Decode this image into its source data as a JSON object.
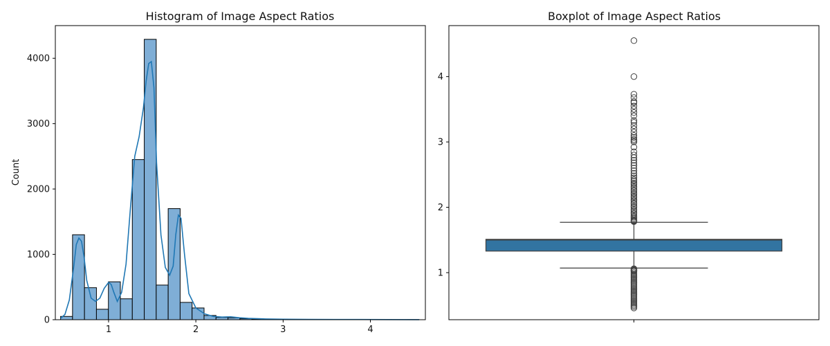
{
  "chart_data": [
    {
      "type": "bar",
      "title": "Histogram of Image Aspect Ratios",
      "xlabel": "",
      "ylabel": "Count",
      "xlim": [
        0.39,
        4.63
      ],
      "ylim": [
        0,
        4500
      ],
      "xticks": [
        1,
        2,
        3,
        4
      ],
      "yticks": [
        0,
        1000,
        2000,
        3000,
        4000
      ],
      "bar_color": "#7FAED6",
      "line_color": "#1F77B4",
      "bins": [
        {
          "x0": 0.45,
          "x1": 0.587,
          "count": 50
        },
        {
          "x0": 0.587,
          "x1": 0.724,
          "count": 1300
        },
        {
          "x0": 0.724,
          "x1": 0.861,
          "count": 490
        },
        {
          "x0": 0.861,
          "x1": 0.998,
          "count": 160
        },
        {
          "x0": 0.998,
          "x1": 1.135,
          "count": 580
        },
        {
          "x0": 1.135,
          "x1": 1.272,
          "count": 320
        },
        {
          "x0": 1.272,
          "x1": 1.409,
          "count": 2450
        },
        {
          "x0": 1.409,
          "x1": 1.546,
          "count": 4290
        },
        {
          "x0": 1.546,
          "x1": 1.683,
          "count": 530
        },
        {
          "x0": 1.683,
          "x1": 1.82,
          "count": 1700
        },
        {
          "x0": 1.82,
          "x1": 1.957,
          "count": 265
        },
        {
          "x0": 1.957,
          "x1": 2.094,
          "count": 180
        },
        {
          "x0": 2.094,
          "x1": 2.231,
          "count": 65
        },
        {
          "x0": 2.231,
          "x1": 2.368,
          "count": 35
        },
        {
          "x0": 2.368,
          "x1": 2.505,
          "count": 30
        },
        {
          "x0": 2.505,
          "x1": 2.642,
          "count": 15
        },
        {
          "x0": 2.642,
          "x1": 2.779,
          "count": 10
        },
        {
          "x0": 2.779,
          "x1": 2.916,
          "count": 8
        },
        {
          "x0": 2.916,
          "x1": 3.053,
          "count": 6
        },
        {
          "x0": 3.053,
          "x1": 3.19,
          "count": 4
        },
        {
          "x0": 3.19,
          "x1": 3.327,
          "count": 3
        },
        {
          "x0": 3.327,
          "x1": 3.464,
          "count": 2
        },
        {
          "x0": 3.464,
          "x1": 3.601,
          "count": 2
        },
        {
          "x0": 3.601,
          "x1": 3.738,
          "count": 2
        },
        {
          "x0": 3.738,
          "x1": 3.875,
          "count": 1
        },
        {
          "x0": 3.875,
          "x1": 4.012,
          "count": 1
        },
        {
          "x0": 4.012,
          "x1": 4.149,
          "count": 0
        },
        {
          "x0": 4.149,
          "x1": 4.286,
          "count": 0
        },
        {
          "x0": 4.286,
          "x1": 4.423,
          "count": 0
        },
        {
          "x0": 4.423,
          "x1": 4.56,
          "count": 1
        }
      ],
      "kde": {
        "x": [
          0.45,
          0.5,
          0.55,
          0.6,
          0.63,
          0.66,
          0.69,
          0.72,
          0.75,
          0.8,
          0.85,
          0.9,
          0.95,
          1.0,
          1.03,
          1.06,
          1.1,
          1.15,
          1.2,
          1.25,
          1.3,
          1.35,
          1.4,
          1.43,
          1.46,
          1.49,
          1.52,
          1.55,
          1.6,
          1.65,
          1.7,
          1.74,
          1.77,
          1.8,
          1.83,
          1.87,
          1.92,
          2.0,
          2.1,
          2.2,
          2.3,
          2.4,
          2.5,
          2.6,
          2.8,
          3.0,
          3.3,
          3.6,
          3.9,
          4.2,
          4.56
        ],
        "y": [
          20,
          80,
          300,
          800,
          1150,
          1250,
          1200,
          950,
          600,
          330,
          280,
          330,
          480,
          570,
          540,
          420,
          280,
          420,
          850,
          1700,
          2500,
          2800,
          3250,
          3650,
          3920,
          3950,
          3550,
          2400,
          1300,
          800,
          680,
          820,
          1300,
          1600,
          1550,
          1000,
          400,
          180,
          90,
          50,
          40,
          45,
          30,
          20,
          12,
          8,
          5,
          4,
          3,
          2,
          1
        ]
      }
    },
    {
      "type": "box",
      "title": "Boxplot of Image Aspect Ratios",
      "ylim": [
        0.28,
        4.78
      ],
      "yticks": [
        1,
        2,
        3,
        4
      ],
      "box_color": "#3274A1",
      "q1": 1.33,
      "median": 1.5,
      "q3": 1.51,
      "whisker_low": 1.07,
      "whisker_high": 1.77,
      "outliers": [
        4.55,
        4.0,
        3.73,
        3.68,
        3.62,
        3.6,
        3.55,
        3.5,
        3.45,
        3.4,
        3.33,
        3.3,
        3.25,
        3.2,
        3.15,
        3.1,
        3.07,
        3.04,
        3.02,
        3.0,
        2.92,
        2.85,
        2.8,
        2.76,
        2.72,
        2.68,
        2.64,
        2.6,
        2.56,
        2.52,
        2.48,
        2.45,
        2.42,
        2.4,
        2.37,
        2.35,
        2.32,
        2.3,
        2.27,
        2.25,
        2.22,
        2.2,
        2.17,
        2.15,
        2.12,
        2.1,
        2.07,
        2.05,
        2.02,
        2.0,
        1.97,
        1.95,
        1.92,
        1.9,
        1.87,
        1.85,
        1.83,
        1.81,
        1.8,
        1.79,
        1.78,
        1.06,
        1.05,
        1.04,
        1.03,
        1.02,
        1.0,
        0.98,
        0.96,
        0.94,
        0.92,
        0.9,
        0.88,
        0.86,
        0.84,
        0.82,
        0.8,
        0.78,
        0.76,
        0.74,
        0.72,
        0.7,
        0.68,
        0.66,
        0.64,
        0.62,
        0.6,
        0.58,
        0.56,
        0.54,
        0.52,
        0.5,
        0.48,
        0.46
      ]
    }
  ]
}
